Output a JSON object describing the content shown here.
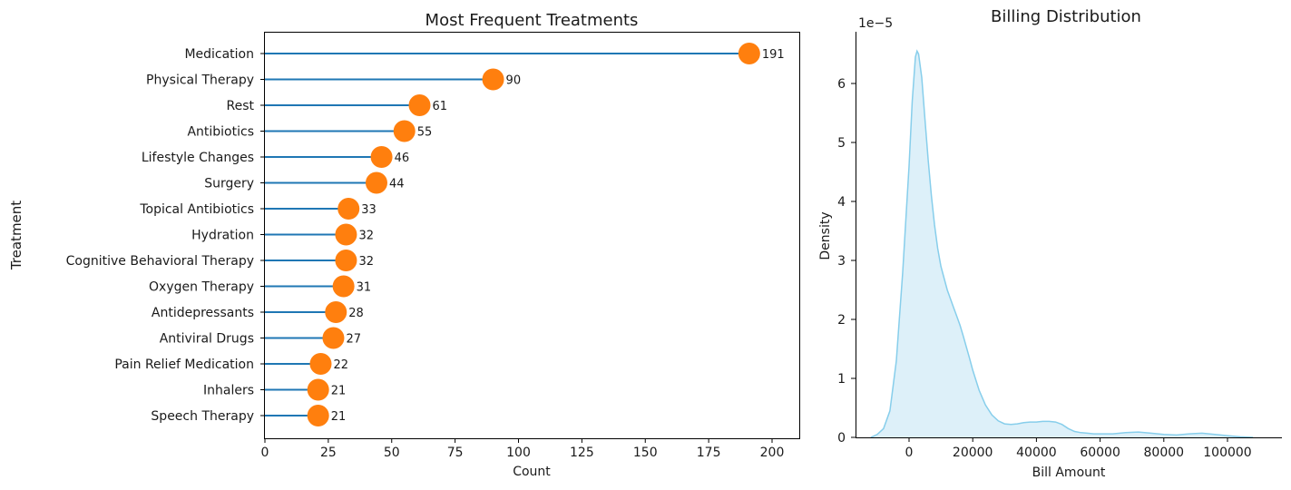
{
  "chart_data": [
    {
      "type": "lollipop",
      "title": "Most Frequent Treatments",
      "xlabel": "Count",
      "ylabel": "Treatment",
      "xlim": [
        0,
        210
      ],
      "xticks": [
        0,
        25,
        50,
        75,
        100,
        125,
        150,
        175,
        200
      ],
      "categories": [
        "Medication",
        "Physical Therapy",
        "Rest",
        "Antibiotics",
        "Lifestyle Changes",
        "Surgery",
        "Topical Antibiotics",
        "Hydration",
        "Cognitive Behavioral Therapy",
        "Oxygen Therapy",
        "Antidepressants",
        "Antiviral Drugs",
        "Pain Relief Medication",
        "Inhalers",
        "Speech Therapy"
      ],
      "values": [
        191,
        90,
        61,
        55,
        46,
        44,
        33,
        32,
        32,
        31,
        28,
        27,
        22,
        21,
        21
      ],
      "colors": {
        "stem": "#1f77b4",
        "marker": "#ff7f0e"
      },
      "grid": false
    },
    {
      "type": "area",
      "title": "Billing Distribution",
      "xlabel": "Bill Amount",
      "ylabel": "Density",
      "y_scale_label": "1e−5",
      "xlim": [
        -13000,
        110000
      ],
      "xticks": [
        0,
        20000,
        40000,
        60000,
        80000,
        100000
      ],
      "ylim": [
        0,
        6.8
      ],
      "yticks": [
        0,
        1,
        2,
        3,
        4,
        5,
        6
      ],
      "x": [
        -12000,
        -10000,
        -8000,
        -6000,
        -4000,
        -2000,
        0,
        1000,
        2000,
        2500,
        3000,
        4000,
        5000,
        6000,
        7000,
        8000,
        9000,
        10000,
        11000,
        12000,
        13000,
        14000,
        15000,
        16000,
        17000,
        18000,
        19000,
        20000,
        22000,
        24000,
        26000,
        28000,
        30000,
        32000,
        34000,
        36000,
        38000,
        40000,
        42000,
        44000,
        46000,
        48000,
        50000,
        52000,
        54000,
        56000,
        58000,
        60000,
        64000,
        68000,
        72000,
        76000,
        80000,
        84000,
        88000,
        92000,
        96000,
        100000,
        104000,
        108000
      ],
      "y": [
        0.0,
        0.05,
        0.15,
        0.45,
        1.3,
        2.8,
        4.6,
        5.7,
        6.45,
        6.55,
        6.5,
        6.1,
        5.4,
        4.7,
        4.1,
        3.6,
        3.2,
        2.9,
        2.7,
        2.5,
        2.35,
        2.2,
        2.05,
        1.9,
        1.72,
        1.53,
        1.34,
        1.14,
        0.8,
        0.55,
        0.38,
        0.28,
        0.23,
        0.22,
        0.23,
        0.25,
        0.26,
        0.26,
        0.27,
        0.27,
        0.26,
        0.22,
        0.15,
        0.1,
        0.08,
        0.07,
        0.06,
        0.06,
        0.06,
        0.08,
        0.09,
        0.07,
        0.05,
        0.04,
        0.06,
        0.07,
        0.05,
        0.03,
        0.01,
        0.0
      ],
      "colors": {
        "line": "#87ceeb",
        "fill": "#ddf0f9"
      },
      "grid": false
    }
  ]
}
